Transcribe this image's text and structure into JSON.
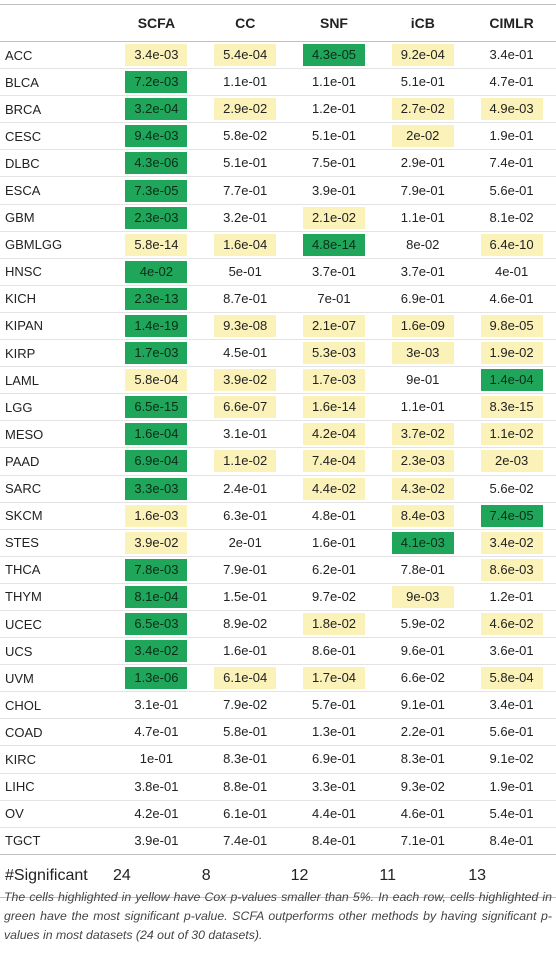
{
  "header": {
    "dataset": "",
    "methods": [
      "SCFA",
      "CC",
      "SNF",
      "iCB",
      "CIMLR"
    ]
  },
  "rows": [
    {
      "name": "ACC",
      "cells": [
        {
          "v": "3.4e-03",
          "h": "sig"
        },
        {
          "v": "5.4e-04",
          "h": "sig"
        },
        {
          "v": "4.3e-05",
          "h": "best"
        },
        {
          "v": "9.2e-04",
          "h": "sig"
        },
        {
          "v": "3.4e-01",
          "h": ""
        }
      ]
    },
    {
      "name": "BLCA",
      "cells": [
        {
          "v": "7.2e-03",
          "h": "best"
        },
        {
          "v": "1.1e-01",
          "h": ""
        },
        {
          "v": "1.1e-01",
          "h": ""
        },
        {
          "v": "5.1e-01",
          "h": ""
        },
        {
          "v": "4.7e-01",
          "h": ""
        }
      ]
    },
    {
      "name": "BRCA",
      "cells": [
        {
          "v": "3.2e-04",
          "h": "best"
        },
        {
          "v": "2.9e-02",
          "h": "sig"
        },
        {
          "v": "1.2e-01",
          "h": ""
        },
        {
          "v": "2.7e-02",
          "h": "sig"
        },
        {
          "v": "4.9e-03",
          "h": "sig"
        }
      ]
    },
    {
      "name": "CESC",
      "cells": [
        {
          "v": "9.4e-03",
          "h": "best"
        },
        {
          "v": "5.8e-02",
          "h": ""
        },
        {
          "v": "5.1e-01",
          "h": ""
        },
        {
          "v": "2e-02",
          "h": "sig"
        },
        {
          "v": "1.9e-01",
          "h": ""
        }
      ]
    },
    {
      "name": "DLBC",
      "cells": [
        {
          "v": "4.3e-06",
          "h": "best"
        },
        {
          "v": "5.1e-01",
          "h": ""
        },
        {
          "v": "7.5e-01",
          "h": ""
        },
        {
          "v": "2.9e-01",
          "h": ""
        },
        {
          "v": "7.4e-01",
          "h": ""
        }
      ]
    },
    {
      "name": "ESCA",
      "cells": [
        {
          "v": "7.3e-05",
          "h": "best"
        },
        {
          "v": "7.7e-01",
          "h": ""
        },
        {
          "v": "3.9e-01",
          "h": ""
        },
        {
          "v": "7.9e-01",
          "h": ""
        },
        {
          "v": "5.6e-01",
          "h": ""
        }
      ]
    },
    {
      "name": "GBM",
      "cells": [
        {
          "v": "2.3e-03",
          "h": "best"
        },
        {
          "v": "3.2e-01",
          "h": ""
        },
        {
          "v": "2.1e-02",
          "h": "sig"
        },
        {
          "v": "1.1e-01",
          "h": ""
        },
        {
          "v": "8.1e-02",
          "h": ""
        }
      ]
    },
    {
      "name": "GBMLGG",
      "cells": [
        {
          "v": "5.8e-14",
          "h": "sig"
        },
        {
          "v": "1.6e-04",
          "h": "sig"
        },
        {
          "v": "4.8e-14",
          "h": "best"
        },
        {
          "v": "8e-02",
          "h": ""
        },
        {
          "v": "6.4e-10",
          "h": "sig"
        }
      ]
    },
    {
      "name": "HNSC",
      "cells": [
        {
          "v": "4e-02",
          "h": "best"
        },
        {
          "v": "5e-01",
          "h": ""
        },
        {
          "v": "3.7e-01",
          "h": ""
        },
        {
          "v": "3.7e-01",
          "h": ""
        },
        {
          "v": "4e-01",
          "h": ""
        }
      ]
    },
    {
      "name": "KICH",
      "cells": [
        {
          "v": "2.3e-13",
          "h": "best"
        },
        {
          "v": "8.7e-01",
          "h": ""
        },
        {
          "v": "7e-01",
          "h": ""
        },
        {
          "v": "6.9e-01",
          "h": ""
        },
        {
          "v": "4.6e-01",
          "h": ""
        }
      ]
    },
    {
      "name": "KIPAN",
      "cells": [
        {
          "v": "1.4e-19",
          "h": "best"
        },
        {
          "v": "9.3e-08",
          "h": "sig"
        },
        {
          "v": "2.1e-07",
          "h": "sig"
        },
        {
          "v": "1.6e-09",
          "h": "sig"
        },
        {
          "v": "9.8e-05",
          "h": "sig"
        }
      ]
    },
    {
      "name": "KIRP",
      "cells": [
        {
          "v": "1.7e-03",
          "h": "best"
        },
        {
          "v": "4.5e-01",
          "h": ""
        },
        {
          "v": "5.3e-03",
          "h": "sig"
        },
        {
          "v": "3e-03",
          "h": "sig"
        },
        {
          "v": "1.9e-02",
          "h": "sig"
        }
      ]
    },
    {
      "name": "LAML",
      "cells": [
        {
          "v": "5.8e-04",
          "h": "sig"
        },
        {
          "v": "3.9e-02",
          "h": "sig"
        },
        {
          "v": "1.7e-03",
          "h": "sig"
        },
        {
          "v": "9e-01",
          "h": ""
        },
        {
          "v": "1.4e-04",
          "h": "best"
        }
      ]
    },
    {
      "name": "LGG",
      "cells": [
        {
          "v": "6.5e-15",
          "h": "best"
        },
        {
          "v": "6.6e-07",
          "h": "sig"
        },
        {
          "v": "1.6e-14",
          "h": "sig"
        },
        {
          "v": "1.1e-01",
          "h": ""
        },
        {
          "v": "8.3e-15",
          "h": "sig"
        }
      ]
    },
    {
      "name": "MESO",
      "cells": [
        {
          "v": "1.6e-04",
          "h": "best"
        },
        {
          "v": "3.1e-01",
          "h": ""
        },
        {
          "v": "4.2e-04",
          "h": "sig"
        },
        {
          "v": "3.7e-02",
          "h": "sig"
        },
        {
          "v": "1.1e-02",
          "h": "sig"
        }
      ]
    },
    {
      "name": "PAAD",
      "cells": [
        {
          "v": "6.9e-04",
          "h": "best"
        },
        {
          "v": "1.1e-02",
          "h": "sig"
        },
        {
          "v": "7.4e-04",
          "h": "sig"
        },
        {
          "v": "2.3e-03",
          "h": "sig"
        },
        {
          "v": "2e-03",
          "h": "sig"
        }
      ]
    },
    {
      "name": "SARC",
      "cells": [
        {
          "v": "3.3e-03",
          "h": "best"
        },
        {
          "v": "2.4e-01",
          "h": ""
        },
        {
          "v": "4.4e-02",
          "h": "sig"
        },
        {
          "v": "4.3e-02",
          "h": "sig"
        },
        {
          "v": "5.6e-02",
          "h": ""
        }
      ]
    },
    {
      "name": "SKCM",
      "cells": [
        {
          "v": "1.6e-03",
          "h": "sig"
        },
        {
          "v": "6.3e-01",
          "h": ""
        },
        {
          "v": "4.8e-01",
          "h": ""
        },
        {
          "v": "8.4e-03",
          "h": "sig"
        },
        {
          "v": "7.4e-05",
          "h": "best"
        }
      ]
    },
    {
      "name": "STES",
      "cells": [
        {
          "v": "3.9e-02",
          "h": "sig"
        },
        {
          "v": "2e-01",
          "h": ""
        },
        {
          "v": "1.6e-01",
          "h": ""
        },
        {
          "v": "4.1e-03",
          "h": "best"
        },
        {
          "v": "3.4e-02",
          "h": "sig"
        }
      ]
    },
    {
      "name": "THCA",
      "cells": [
        {
          "v": "7.8e-03",
          "h": "best"
        },
        {
          "v": "7.9e-01",
          "h": ""
        },
        {
          "v": "6.2e-01",
          "h": ""
        },
        {
          "v": "7.8e-01",
          "h": ""
        },
        {
          "v": "8.6e-03",
          "h": "sig"
        }
      ]
    },
    {
      "name": "THYM",
      "cells": [
        {
          "v": "8.1e-04",
          "h": "best"
        },
        {
          "v": "1.5e-01",
          "h": ""
        },
        {
          "v": "9.7e-02",
          "h": ""
        },
        {
          "v": "9e-03",
          "h": "sig"
        },
        {
          "v": "1.2e-01",
          "h": ""
        }
      ]
    },
    {
      "name": "UCEC",
      "cells": [
        {
          "v": "6.5e-03",
          "h": "best"
        },
        {
          "v": "8.9e-02",
          "h": ""
        },
        {
          "v": "1.8e-02",
          "h": "sig"
        },
        {
          "v": "5.9e-02",
          "h": ""
        },
        {
          "v": "4.6e-02",
          "h": "sig"
        }
      ]
    },
    {
      "name": "UCS",
      "cells": [
        {
          "v": "3.4e-02",
          "h": "best"
        },
        {
          "v": "1.6e-01",
          "h": ""
        },
        {
          "v": "8.6e-01",
          "h": ""
        },
        {
          "v": "9.6e-01",
          "h": ""
        },
        {
          "v": "3.6e-01",
          "h": ""
        }
      ]
    },
    {
      "name": "UVM",
      "cells": [
        {
          "v": "1.3e-06",
          "h": "best"
        },
        {
          "v": "6.1e-04",
          "h": "sig"
        },
        {
          "v": "1.7e-04",
          "h": "sig"
        },
        {
          "v": "6.6e-02",
          "h": ""
        },
        {
          "v": "5.8e-04",
          "h": "sig"
        }
      ]
    },
    {
      "name": "CHOL",
      "cells": [
        {
          "v": "3.1e-01",
          "h": ""
        },
        {
          "v": "7.9e-02",
          "h": ""
        },
        {
          "v": "5.7e-01",
          "h": ""
        },
        {
          "v": "9.1e-01",
          "h": ""
        },
        {
          "v": "3.4e-01",
          "h": ""
        }
      ]
    },
    {
      "name": "COAD",
      "cells": [
        {
          "v": "4.7e-01",
          "h": ""
        },
        {
          "v": "5.8e-01",
          "h": ""
        },
        {
          "v": "1.3e-01",
          "h": ""
        },
        {
          "v": "2.2e-01",
          "h": ""
        },
        {
          "v": "5.6e-01",
          "h": ""
        }
      ]
    },
    {
      "name": "KIRC",
      "cells": [
        {
          "v": "1e-01",
          "h": ""
        },
        {
          "v": "8.3e-01",
          "h": ""
        },
        {
          "v": "6.9e-01",
          "h": ""
        },
        {
          "v": "8.3e-01",
          "h": ""
        },
        {
          "v": "9.1e-02",
          "h": ""
        }
      ]
    },
    {
      "name": "LIHC",
      "cells": [
        {
          "v": "3.8e-01",
          "h": ""
        },
        {
          "v": "8.8e-01",
          "h": ""
        },
        {
          "v": "3.3e-01",
          "h": ""
        },
        {
          "v": "9.3e-02",
          "h": ""
        },
        {
          "v": "1.9e-01",
          "h": ""
        }
      ]
    },
    {
      "name": "OV",
      "cells": [
        {
          "v": "4.2e-01",
          "h": ""
        },
        {
          "v": "6.1e-01",
          "h": ""
        },
        {
          "v": "4.4e-01",
          "h": ""
        },
        {
          "v": "4.6e-01",
          "h": ""
        },
        {
          "v": "5.4e-01",
          "h": ""
        }
      ]
    },
    {
      "name": "TGCT",
      "cells": [
        {
          "v": "3.9e-01",
          "h": ""
        },
        {
          "v": "7.4e-01",
          "h": ""
        },
        {
          "v": "8.4e-01",
          "h": ""
        },
        {
          "v": "7.1e-01",
          "h": ""
        },
        {
          "v": "8.4e-01",
          "h": ""
        }
      ]
    }
  ],
  "summary": {
    "label": "#Significant",
    "values": [
      "24",
      "8",
      "12",
      "11",
      "13"
    ]
  },
  "caption": "The cells highlighted in yellow have Cox p-values smaller than 5%. In each row, cells highlighted in green have the most significant p-value. SCFA outperforms other methods by having significant p-values in most datasets (24 out of 30 datasets).",
  "colors": {
    "significant": "#fbf2ba",
    "most_significant": "#1fa65b"
  }
}
